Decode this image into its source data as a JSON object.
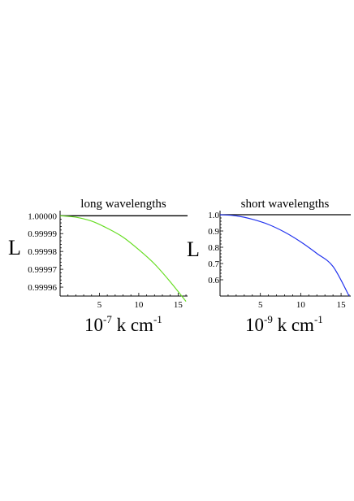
{
  "chart_data": [
    {
      "type": "line",
      "title": "long wavelengths",
      "ylabel": "L",
      "xlabel": {
        "base": "10",
        "exp1": "-7",
        "mid": " k cm",
        "exp2": "-1"
      },
      "xlim": [
        0,
        16.2
      ],
      "ylim": [
        0.999955,
        1.0000015
      ],
      "xticks": [
        {
          "v": 5,
          "label": "5"
        },
        {
          "v": 10,
          "label": "10"
        },
        {
          "v": 15,
          "label": "15"
        }
      ],
      "yticks": [
        {
          "v": 1.0,
          "label": "1.00000"
        },
        {
          "v": 0.99999,
          "label": "0.99999"
        },
        {
          "v": 0.99998,
          "label": "0.99998"
        },
        {
          "v": 0.99997,
          "label": "0.99997"
        },
        {
          "v": 0.99996,
          "label": "0.99996"
        }
      ],
      "series": [
        {
          "color": "#000000",
          "x": [
            0,
            16.2
          ],
          "y": [
            1.0,
            1.0
          ]
        },
        {
          "color": "#66dd22",
          "x": [
            0,
            2,
            4,
            6,
            8,
            10,
            12,
            14,
            16
          ],
          "y": [
            1.0,
            0.9999992,
            0.999997,
            0.999993,
            0.999988,
            0.999981,
            0.999973,
            0.999963,
            0.999952
          ]
        }
      ]
    },
    {
      "type": "line",
      "title": "short wavelengths",
      "ylabel": "L",
      "xlabel": {
        "base": "10",
        "exp1": "-9",
        "mid": " k cm",
        "exp2": "-1"
      },
      "xlim": [
        0,
        16.2
      ],
      "ylim": [
        0.5,
        1.01
      ],
      "xticks": [
        {
          "v": 5,
          "label": "5"
        },
        {
          "v": 10,
          "label": "10"
        },
        {
          "v": 15,
          "label": "15"
        }
      ],
      "yticks": [
        {
          "v": 1.0,
          "label": "1.0"
        },
        {
          "v": 0.9,
          "label": "0.9"
        },
        {
          "v": 0.8,
          "label": "0.8"
        },
        {
          "v": 0.7,
          "label": "0.7"
        },
        {
          "v": 0.6,
          "label": "0.6"
        }
      ],
      "series": [
        {
          "color": "#000000",
          "x": [
            0,
            16.2
          ],
          "y": [
            1.0,
            1.0
          ]
        },
        {
          "color": "#2233ee",
          "x": [
            0,
            2,
            4,
            6,
            8,
            10,
            12,
            14,
            16
          ],
          "y": [
            1.0,
            0.993,
            0.972,
            0.94,
            0.893,
            0.833,
            0.762,
            0.682,
            0.5
          ]
        }
      ]
    }
  ]
}
